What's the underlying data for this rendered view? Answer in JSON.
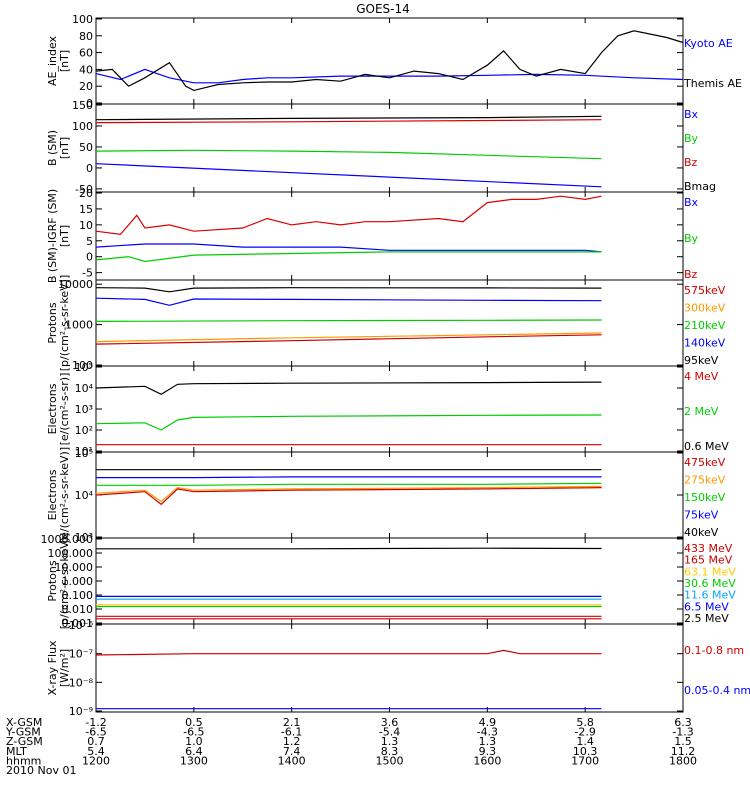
{
  "chart_data": {
    "type": "line",
    "title": "GOES-14",
    "date": "2010 Nov 01",
    "ephemeris": {
      "rows": [
        {
          "label": "X-GSM",
          "values": [
            "-1.2",
            "0.5",
            "2.1",
            "3.6",
            "4.9",
            "5.8",
            "6.3"
          ]
        },
        {
          "label": "Y-GSM",
          "values": [
            "-6.5",
            "-6.5",
            "-6.1",
            "-5.4",
            "-4.3",
            "-2.9",
            "-1.3"
          ]
        },
        {
          "label": "Z-GSM",
          "values": [
            "0.7",
            "1.0",
            "1.2",
            "1.3",
            "1.3",
            "1.4",
            "1.5"
          ]
        },
        {
          "label": "MLT",
          "values": [
            "5.4",
            "6.4",
            "7.4",
            "8.3",
            "9.3",
            "10.3",
            "11.2"
          ]
        },
        {
          "label": "hhmm",
          "values": [
            "1200",
            "1300",
            "1400",
            "1500",
            "1600",
            "1700",
            "1800"
          ]
        }
      ]
    },
    "x_range": [
      "1200",
      "1800"
    ],
    "panels": [
      {
        "id": "ae",
        "ylabel": [
          "AE_index",
          "[nT]"
        ],
        "scale": "linear",
        "ylim": [
          0,
          100
        ],
        "ticks": [
          "0",
          "20",
          "40",
          "60",
          "80",
          "100"
        ],
        "x_end": "1800",
        "series": [
          {
            "name": "Kyoto AE",
            "color": "#0000ff",
            "x": [
              "1200",
              "1215",
              "1230",
              "1245",
              "1300",
              "1315",
              "1330",
              "1345",
              "1400",
              "1430",
              "1500",
              "1530",
              "1600",
              "1630",
              "1700",
              "1730",
              "1800"
            ],
            "y": [
              35,
              28,
              40,
              30,
              24,
              24,
              28,
              30,
              30,
              32,
              32,
              32,
              33,
              34,
              33,
              30,
              28
            ]
          },
          {
            "name": "Themis AE",
            "color": "#000000",
            "x": [
              "1200",
              "1210",
              "1220",
              "1230",
              "1245",
              "1255",
              "1300",
              "1315",
              "1330",
              "1345",
              "1400",
              "1415",
              "1430",
              "1445",
              "1500",
              "1515",
              "1530",
              "1545",
              "1600",
              "1610",
              "1620",
              "1630",
              "1645",
              "1700",
              "1710",
              "1720",
              "1730",
              "1740",
              "1750",
              "1800"
            ],
            "y": [
              38,
              40,
              20,
              30,
              48,
              20,
              15,
              22,
              24,
              25,
              25,
              28,
              26,
              34,
              30,
              38,
              35,
              28,
              45,
              62,
              40,
              32,
              40,
              35,
              60,
              80,
              86,
              82,
              78,
              72
            ]
          }
        ]
      },
      {
        "id": "bsm",
        "ylabel": [
          "B (SM)",
          "[nT]"
        ],
        "scale": "linear",
        "ylim": [
          -55,
          150
        ],
        "ticks": [
          "-50",
          "0",
          "50",
          "100",
          "150"
        ],
        "x_end": "1710",
        "series": [
          {
            "name": "Bx",
            "color": "#0000ff",
            "x": [
              "1200",
              "1710"
            ],
            "y": [
              10,
              -45
            ]
          },
          {
            "name": "By",
            "color": "#00cc00",
            "x": [
              "1200",
              "1300",
              "1400",
              "1500",
              "1600",
              "1710"
            ],
            "y": [
              40,
              42,
              40,
              37,
              30,
              22
            ]
          },
          {
            "name": "Bz",
            "color": "#dd0000",
            "x": [
              "1200",
              "1400",
              "1600",
              "1710"
            ],
            "y": [
              108,
              110,
              113,
              115
            ]
          },
          {
            "name": "Bmag",
            "color": "#000000",
            "x": [
              "1200",
              "1400",
              "1600",
              "1710"
            ],
            "y": [
              115,
              118,
              120,
              123
            ]
          }
        ]
      },
      {
        "id": "bdiff",
        "ylabel": [
          "B (SM)-IGRF (SM)",
          "[nT]"
        ],
        "scale": "linear",
        "ylim": [
          -7,
          20
        ],
        "ticks": [
          "-5",
          "0",
          "5",
          "10",
          "15",
          "20"
        ],
        "x_end": "1710",
        "series": [
          {
            "name": "Bx",
            "color": "#0000ff",
            "x": [
              "1200",
              "1230",
              "1300",
              "1330",
              "1400",
              "1430",
              "1500",
              "1530",
              "1600",
              "1630",
              "1700",
              "1710"
            ],
            "y": [
              3,
              4,
              4,
              3,
              3,
              3,
              2,
              2,
              2,
              2,
              2,
              1.5
            ]
          },
          {
            "name": "By",
            "color": "#00cc00",
            "x": [
              "1200",
              "1220",
              "1230",
              "1300",
              "1400",
              "1500",
              "1600",
              "1710"
            ],
            "y": [
              -1,
              0,
              -1.5,
              0.5,
              1,
              1.5,
              1.5,
              1.5
            ]
          },
          {
            "name": "Bz",
            "color": "#dd0000",
            "x": [
              "1200",
              "1215",
              "1225",
              "1230",
              "1245",
              "1300",
              "1330",
              "1345",
              "1400",
              "1415",
              "1430",
              "1445",
              "1500",
              "1530",
              "1545",
              "1600",
              "1615",
              "1630",
              "1645",
              "1700",
              "1710"
            ],
            "y": [
              8,
              7,
              13,
              9,
              10,
              8,
              9,
              12,
              10,
              11,
              10,
              11,
              11,
              12,
              11,
              17,
              18,
              18,
              19,
              18,
              19
            ]
          }
        ]
      },
      {
        "id": "protons",
        "ylabel": [
          "Protons",
          "[p/(cm²-s-sr-keV)]"
        ],
        "scale": "log",
        "ylim": [
          100,
          12000
        ],
        "ticks": [
          "100",
          "1000",
          "10000"
        ],
        "x_end": "1710",
        "series": [
          {
            "name": "575keV",
            "color": "#cc0000",
            "x": [
              "1200",
              "1400",
              "1600",
              "1710"
            ],
            "y": [
              330,
              400,
              500,
              560
            ]
          },
          {
            "name": "300keV",
            "color": "#ff9900",
            "x": [
              "1200",
              "1400",
              "1600",
              "1710"
            ],
            "y": [
              380,
              470,
              560,
              620
            ]
          },
          {
            "name": "210keV",
            "color": "#00cc00",
            "x": [
              "1200",
              "1400",
              "1600",
              "1710"
            ],
            "y": [
              1200,
              1250,
              1280,
              1300
            ]
          },
          {
            "name": "140keV",
            "color": "#0000ff",
            "x": [
              "1200",
              "1230",
              "1245",
              "1300",
              "1400",
              "1600",
              "1710"
            ],
            "y": [
              4500,
              4200,
              3000,
              4300,
              4200,
              4000,
              3900
            ]
          },
          {
            "name": "95keV",
            "color": "#000000",
            "x": [
              "1200",
              "1230",
              "1245",
              "1300",
              "1400",
              "1600",
              "1710"
            ],
            "y": [
              8200,
              8000,
              6500,
              8000,
              8200,
              8100,
              8000
            ]
          }
        ]
      },
      {
        "id": "electrons-mev",
        "ylabel": [
          "Electrons",
          "[e/(cm²-s-sr)]"
        ],
        "scale": "log",
        "ylim": [
          10,
          100000
        ],
        "ticks": [
          "10¹",
          "10²",
          "10³",
          "10⁴",
          "10⁵"
        ],
        "x_end": "1710",
        "series": [
          {
            "name": "4 MeV",
            "color": "#cc0000",
            "x": [
              "1200",
              "1710"
            ],
            "y": [
              20,
              20
            ]
          },
          {
            "name": "2 MeV",
            "color": "#00cc00",
            "x": [
              "1200",
              "1230",
              "1240",
              "1250",
              "1300",
              "1400",
              "1600",
              "1710"
            ],
            "y": [
              200,
              220,
              100,
              300,
              400,
              450,
              500,
              520
            ]
          },
          {
            "name": "0.6 MeV",
            "color": "#000000",
            "x": [
              "1200",
              "1230",
              "1240",
              "1250",
              "1300",
              "1400",
              "1600",
              "1710"
            ],
            "y": [
              10000,
              12000,
              5000,
              15000,
              16000,
              17000,
              18000,
              19000
            ]
          }
        ]
      },
      {
        "id": "electrons-kev",
        "ylabel": [
          "Electrons",
          "[e/(cm²-s-sr-keV)]"
        ],
        "scale": "log",
        "ylim": [
          1000,
          100000
        ],
        "ticks": [
          "10³",
          "10⁴",
          "10⁵"
        ],
        "x_end": "1710",
        "series": [
          {
            "name": "475keV",
            "color": "#cc0000",
            "x": [
              "1200",
              "1230",
              "1240",
              "1250",
              "1300",
              "1400",
              "1600",
              "1710"
            ],
            "y": [
              10000,
              12000,
              6000,
              14000,
              12000,
              13000,
              14000,
              15000
            ]
          },
          {
            "name": "275keV",
            "color": "#ff9900",
            "x": [
              "1200",
              "1230",
              "1240",
              "1250",
              "1300",
              "1400",
              "1600",
              "1710"
            ],
            "y": [
              11000,
              13000,
              7000,
              15000,
              13000,
              14000,
              15000,
              16000
            ]
          },
          {
            "name": "150keV",
            "color": "#00cc00",
            "x": [
              "1200",
              "1300",
              "1400",
              "1600",
              "1710"
            ],
            "y": [
              17000,
              17000,
              18000,
              18000,
              19000
            ]
          },
          {
            "name": "75keV",
            "color": "#0000ff",
            "x": [
              "1200",
              "1300",
              "1400",
              "1600",
              "1710"
            ],
            "y": [
              26000,
              26000,
              27000,
              27000,
              27000
            ]
          },
          {
            "name": "40keV",
            "color": "#000000",
            "x": [
              "1200",
              "1300",
              "1400",
              "1600",
              "1710"
            ],
            "y": [
              40000,
              40000,
              40000,
              40000,
              40000
            ]
          }
        ]
      },
      {
        "id": "protons-mev",
        "ylabel": [
          "Protons",
          "[p/(cm²-s-sr-keV)]"
        ],
        "scale": "log",
        "ylim": [
          0.001,
          1000
        ],
        "ticks": [
          "0.001",
          "0.010",
          "0.100",
          "1.000",
          "10.000",
          "100.000",
          "1000.000"
        ],
        "x_end": "1710",
        "series": [
          {
            "name": "433 MeV",
            "color": "#cc0000",
            "x": [
              "1200",
              "1710"
            ],
            "y": [
              0.002,
              0.002
            ]
          },
          {
            "name": "165 MeV",
            "color": "#cc0000",
            "x": [
              "1200",
              "1710"
            ],
            "y": [
              0.003,
              0.003
            ]
          },
          {
            "name": "63.1 MeV",
            "color": "#ffcc00",
            "x": [
              "1200",
              "1710"
            ],
            "y": [
              0.02,
              0.02
            ]
          },
          {
            "name": "30.6 MeV",
            "color": "#00cc00",
            "x": [
              "1200",
              "1710"
            ],
            "y": [
              0.015,
              0.015
            ]
          },
          {
            "name": "11.6 MeV",
            "color": "#00aaff",
            "x": [
              "1200",
              "1710"
            ],
            "y": [
              0.05,
              0.05
            ]
          },
          {
            "name": "6.5 MeV",
            "color": "#0000ff",
            "x": [
              "1200",
              "1710"
            ],
            "y": [
              0.08,
              0.08
            ]
          },
          {
            "name": "2.5 MeV",
            "color": "#000000",
            "x": [
              "1200",
              "1400",
              "1600",
              "1710"
            ],
            "y": [
              200,
              200,
              220,
              210
            ]
          }
        ]
      },
      {
        "id": "xray",
        "ylabel": [
          "X-ray Flux",
          "[W/m²]"
        ],
        "scale": "log",
        "ylim": [
          1e-09,
          1e-06
        ],
        "ticks": [
          "10⁻⁹",
          "10⁻⁸",
          "10⁻⁷",
          "10⁻⁶"
        ],
        "x_end": "1710",
        "series": [
          {
            "name": "0.1-0.8 nm",
            "color": "#cc0000",
            "x": [
              "1200",
              "1300",
              "1400",
              "1500",
              "1600",
              "1610",
              "1620",
              "1710"
            ],
            "y": [
              9e-08,
              1e-07,
              1e-07,
              1e-07,
              1e-07,
              1.3e-07,
              1e-07,
              1e-07
            ]
          },
          {
            "name": "0.05-0.4 nm",
            "color": "#0000ff",
            "x": [
              "1200",
              "1710"
            ],
            "y": [
              1.2e-09,
              1.2e-09
            ]
          }
        ]
      }
    ]
  }
}
